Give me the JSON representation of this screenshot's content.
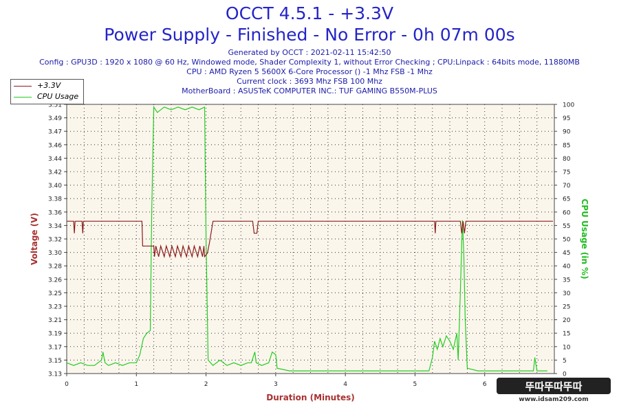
{
  "header": {
    "title": "OCCT 4.5.1 - +3.3V",
    "subtitle": "Power Supply - Finished - No Error - 0h 07m 00s",
    "generated": "Generated by OCCT : 2021-02-11 15:42:50",
    "config": "Config : GPU3D : 1920 x 1080 @ 60 Hz, Windowed mode, Shader Complexity 1, without Error Checking ; CPU:Linpack : 64bits mode, 11880MB",
    "cpu": "CPU : AMD Ryzen 5 5600X 6-Core Processor () -1 Mhz FSB -1 Mhz",
    "clock": "Current clock : 3693 Mhz FSB 100 Mhz",
    "motherboard": "MotherBoard : ASUSTeK COMPUTER INC.: TUF GAMING B550M-PLUS"
  },
  "colors": {
    "voltage": "#8b1a1a",
    "cpu": "#22cc22",
    "title": "#2424c8",
    "plot_bg": "#fbf6ec",
    "grid": "#333333",
    "axis_label_left": "#a83232",
    "axis_label_right": "#22bb22"
  },
  "watermark": {
    "text": "www.idsam209.com",
    "logo_text": "뚜따뚜따뚜따"
  },
  "chart_data": {
    "type": "line",
    "xlabel": "Duration (Minutes)",
    "ylabel_left": "Voltage (V)",
    "ylabel_right": "CPU Usage (in %)",
    "xlim": [
      0,
      7
    ],
    "ylim_left": [
      3.13,
      3.51
    ],
    "ylim_right": [
      0,
      100
    ],
    "x_ticks": [
      0,
      1,
      2,
      3,
      4,
      5,
      6
    ],
    "y_ticks_left": [
      "3.13",
      "3.15",
      "3.17",
      "3.19",
      "3.21",
      "3.23",
      "3.25",
      "3.26",
      "3.28",
      "3.30",
      "3.32",
      "3.34",
      "3.36",
      "3.38",
      "3.40",
      "3.42",
      "3.44",
      "3.46",
      "3.47",
      "3.49",
      "3.51"
    ],
    "y_ticks_right": [
      0,
      5,
      10,
      15,
      20,
      25,
      30,
      35,
      40,
      45,
      50,
      55,
      60,
      65,
      70,
      75,
      80,
      85,
      90,
      95,
      100
    ],
    "grid": "dotted",
    "legend_position": "top-left",
    "series": [
      {
        "name": "+3.3V",
        "axis": "left",
        "points": [
          [
            0,
            3.345
          ],
          [
            0.1,
            3.345
          ],
          [
            0.11,
            3.328
          ],
          [
            0.12,
            3.345
          ],
          [
            0.22,
            3.345
          ],
          [
            0.23,
            3.328
          ],
          [
            0.24,
            3.345
          ],
          [
            1.08,
            3.345
          ],
          [
            1.09,
            3.31
          ],
          [
            1.25,
            3.31
          ],
          [
            1.26,
            3.295
          ],
          [
            1.28,
            3.31
          ],
          [
            1.32,
            3.295
          ],
          [
            1.35,
            3.31
          ],
          [
            1.4,
            3.295
          ],
          [
            1.43,
            3.31
          ],
          [
            1.48,
            3.295
          ],
          [
            1.51,
            3.31
          ],
          [
            1.56,
            3.295
          ],
          [
            1.59,
            3.31
          ],
          [
            1.64,
            3.295
          ],
          [
            1.67,
            3.31
          ],
          [
            1.72,
            3.295
          ],
          [
            1.75,
            3.31
          ],
          [
            1.8,
            3.295
          ],
          [
            1.83,
            3.31
          ],
          [
            1.88,
            3.295
          ],
          [
            1.91,
            3.31
          ],
          [
            1.95,
            3.295
          ],
          [
            1.97,
            3.31
          ],
          [
            1.98,
            3.295
          ],
          [
            2.02,
            3.3
          ],
          [
            2.05,
            3.315
          ],
          [
            2.1,
            3.345
          ],
          [
            2.67,
            3.345
          ],
          [
            2.69,
            3.328
          ],
          [
            2.73,
            3.328
          ],
          [
            2.75,
            3.345
          ],
          [
            5.28,
            3.345
          ],
          [
            5.29,
            3.328
          ],
          [
            5.3,
            3.345
          ],
          [
            5.65,
            3.345
          ],
          [
            5.67,
            3.328
          ],
          [
            5.69,
            3.345
          ],
          [
            5.71,
            3.328
          ],
          [
            5.73,
            3.345
          ],
          [
            6.98,
            3.345
          ]
        ]
      },
      {
        "name": "CPU Usage",
        "axis": "right",
        "points": [
          [
            0,
            4
          ],
          [
            0.1,
            3
          ],
          [
            0.2,
            4
          ],
          [
            0.3,
            3
          ],
          [
            0.4,
            3
          ],
          [
            0.5,
            5
          ],
          [
            0.52,
            8
          ],
          [
            0.55,
            4
          ],
          [
            0.6,
            3
          ],
          [
            0.7,
            4
          ],
          [
            0.8,
            3
          ],
          [
            0.9,
            4
          ],
          [
            1.0,
            4
          ],
          [
            1.05,
            7
          ],
          [
            1.1,
            13
          ],
          [
            1.15,
            15
          ],
          [
            1.2,
            16
          ],
          [
            1.22,
            60
          ],
          [
            1.25,
            99
          ],
          [
            1.3,
            97
          ],
          [
            1.4,
            99
          ],
          [
            1.5,
            98
          ],
          [
            1.6,
            99
          ],
          [
            1.7,
            98
          ],
          [
            1.8,
            99
          ],
          [
            1.9,
            98
          ],
          [
            1.98,
            99
          ],
          [
            2.0,
            50
          ],
          [
            2.03,
            5
          ],
          [
            2.1,
            3
          ],
          [
            2.2,
            5
          ],
          [
            2.3,
            3
          ],
          [
            2.4,
            4
          ],
          [
            2.5,
            3
          ],
          [
            2.6,
            4
          ],
          [
            2.65,
            4
          ],
          [
            2.7,
            8
          ],
          [
            2.72,
            4
          ],
          [
            2.8,
            3
          ],
          [
            2.9,
            4
          ],
          [
            2.95,
            8
          ],
          [
            3.0,
            7
          ],
          [
            3.02,
            2
          ],
          [
            3.2,
            1
          ],
          [
            3.5,
            1
          ],
          [
            3.8,
            1
          ],
          [
            4.0,
            1
          ],
          [
            4.3,
            1
          ],
          [
            4.6,
            1
          ],
          [
            4.9,
            1
          ],
          [
            5.2,
            1
          ],
          [
            5.25,
            6
          ],
          [
            5.28,
            12
          ],
          [
            5.32,
            9
          ],
          [
            5.36,
            13
          ],
          [
            5.4,
            10
          ],
          [
            5.45,
            14
          ],
          [
            5.5,
            12
          ],
          [
            5.55,
            9
          ],
          [
            5.6,
            15
          ],
          [
            5.62,
            5
          ],
          [
            5.65,
            30
          ],
          [
            5.68,
            57
          ],
          [
            5.7,
            45
          ],
          [
            5.72,
            20
          ],
          [
            5.75,
            2
          ],
          [
            5.9,
            1
          ],
          [
            6.2,
            1
          ],
          [
            6.5,
            1
          ],
          [
            6.7,
            1
          ],
          [
            6.72,
            6
          ],
          [
            6.75,
            1
          ],
          [
            6.9,
            1
          ]
        ]
      }
    ]
  }
}
